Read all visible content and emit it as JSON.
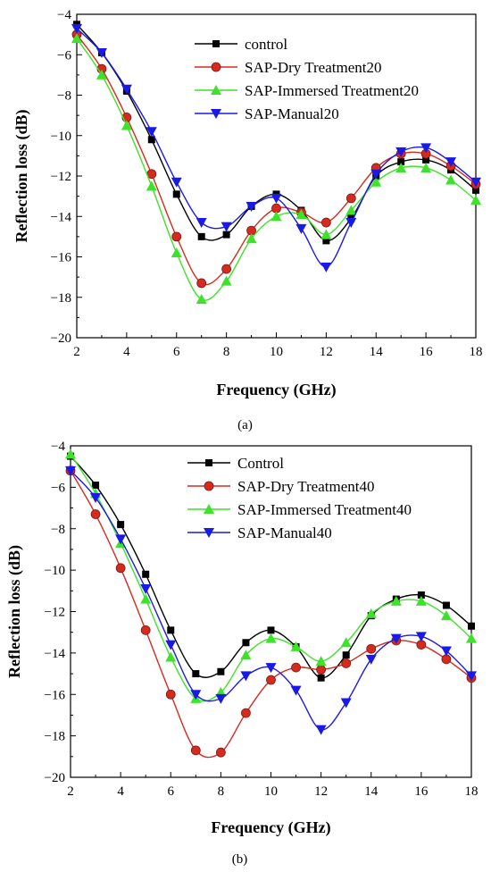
{
  "chart_data": [
    {
      "type": "line",
      "panel_label": "(a)",
      "xlabel": "Frequency (GHz)",
      "ylabel": "Reflection loss (dB)",
      "xlim": [
        2,
        18
      ],
      "ylim": [
        -20,
        -4
      ],
      "xticks": [
        2,
        4,
        6,
        8,
        10,
        12,
        14,
        16,
        18
      ],
      "yticks": [
        -4,
        -6,
        -8,
        -10,
        -12,
        -14,
        -16,
        -18,
        -20
      ],
      "legend_position": "top-right",
      "x": [
        2,
        3,
        4,
        5,
        6,
        7,
        8,
        9,
        10,
        11,
        12,
        13,
        14,
        15,
        16,
        17,
        18
      ],
      "series": [
        {
          "name": "control",
          "color": "#000000",
          "marker": "square",
          "values": [
            -4.5,
            -5.9,
            -7.8,
            -10.2,
            -12.9,
            -15.0,
            -14.9,
            -13.5,
            -12.9,
            -13.7,
            -15.2,
            -14.1,
            -12.0,
            -11.3,
            -11.2,
            -11.7,
            -12.7
          ]
        },
        {
          "name": "SAP-Dry Treatment20",
          "color": "#d62a1e",
          "marker": "circle",
          "values": [
            -5.0,
            -6.7,
            -9.1,
            -11.9,
            -15.0,
            -17.3,
            -16.6,
            -14.7,
            -13.6,
            -13.8,
            -14.3,
            -13.1,
            -11.6,
            -10.9,
            -10.9,
            -11.5,
            -12.4
          ]
        },
        {
          "name": "SAP-Immersed Treatment20",
          "color": "#3fe22a",
          "marker": "triangle-up",
          "values": [
            -5.2,
            -7.0,
            -9.5,
            -12.5,
            -15.8,
            -18.1,
            -17.2,
            -15.1,
            -14.0,
            -13.9,
            -14.9,
            -13.7,
            -12.3,
            -11.6,
            -11.6,
            -12.2,
            -13.2
          ]
        },
        {
          "name": "SAP-Manual20",
          "color": "#1a1ae6",
          "marker": "triangle-down",
          "values": [
            -4.7,
            -5.9,
            -7.7,
            -9.8,
            -12.3,
            -14.3,
            -14.5,
            -13.5,
            -13.1,
            -14.6,
            -16.5,
            -14.3,
            -11.9,
            -10.8,
            -10.6,
            -11.3,
            -12.3
          ]
        }
      ]
    },
    {
      "type": "line",
      "panel_label": "(b)",
      "xlabel": "Frequency (GHz)",
      "ylabel": "Reflection loss (dB)",
      "xlim": [
        2,
        18
      ],
      "ylim": [
        -20,
        -4
      ],
      "xticks": [
        2,
        4,
        6,
        8,
        10,
        12,
        14,
        16,
        18
      ],
      "yticks": [
        -4,
        -6,
        -8,
        -10,
        -12,
        -14,
        -16,
        -18,
        -20
      ],
      "legend_position": "top-right",
      "x": [
        2,
        3,
        4,
        5,
        6,
        7,
        8,
        9,
        10,
        11,
        12,
        13,
        14,
        15,
        16,
        17,
        18
      ],
      "series": [
        {
          "name": "Control",
          "color": "#000000",
          "marker": "square",
          "values": [
            -4.5,
            -5.9,
            -7.8,
            -10.2,
            -12.9,
            -15.0,
            -14.9,
            -13.5,
            -12.9,
            -13.7,
            -15.2,
            -14.1,
            -12.2,
            -11.4,
            -11.2,
            -11.7,
            -12.7
          ]
        },
        {
          "name": "SAP-Dry Treatment40",
          "color": "#d62a1e",
          "marker": "circle",
          "values": [
            -5.2,
            -7.3,
            -9.9,
            -12.9,
            -16.0,
            -18.7,
            -18.8,
            -16.9,
            -15.3,
            -14.7,
            -14.8,
            -14.5,
            -13.8,
            -13.4,
            -13.6,
            -14.3,
            -15.2
          ]
        },
        {
          "name": "SAP-Immersed Treatment40",
          "color": "#3fe22a",
          "marker": "triangle-up",
          "values": [
            -4.4,
            -6.3,
            -8.7,
            -11.4,
            -14.2,
            -16.2,
            -15.9,
            -14.1,
            -13.3,
            -13.7,
            -14.4,
            -13.5,
            -12.1,
            -11.5,
            -11.5,
            -12.2,
            -13.3
          ]
        },
        {
          "name": "SAP-Manual40",
          "color": "#1a1ae6",
          "marker": "triangle-down",
          "values": [
            -5.2,
            -6.5,
            -8.5,
            -10.9,
            -13.6,
            -16.0,
            -16.2,
            -15.1,
            -14.7,
            -15.8,
            -17.7,
            -16.4,
            -14.3,
            -13.3,
            -13.2,
            -13.9,
            -15.1
          ]
        }
      ]
    }
  ]
}
